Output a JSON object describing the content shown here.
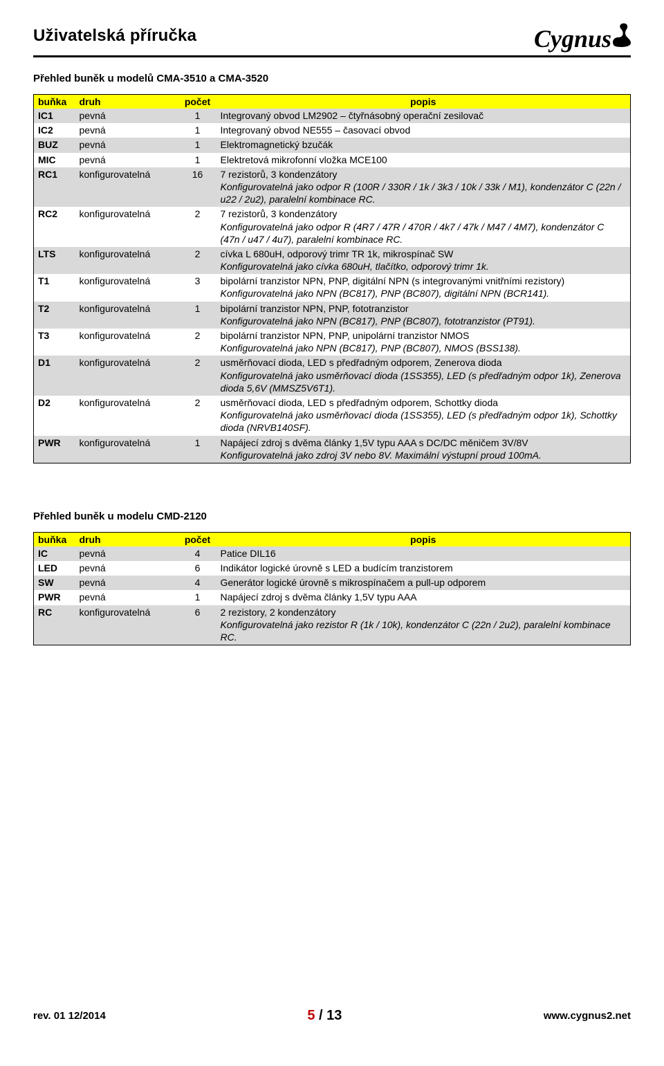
{
  "header": {
    "doc_title": "Uživatelská příručka",
    "brand": "Cygnus"
  },
  "colors": {
    "header_bg": "#ffff00",
    "row_odd": "#d9d9d9",
    "row_even": "#ffffff",
    "border": "#000000",
    "page_red": "#c00000"
  },
  "section1": {
    "title": "Přehled buněk u modelů CMA-3510 a CMA-3520",
    "columns": [
      "buňka",
      "druh",
      "počet",
      "popis"
    ],
    "rows": [
      {
        "code": "IC1",
        "kind": "pevná",
        "count": "1",
        "desc_plain": "Integrovaný obvod LM2902 – čtyřnásobný operační zesilovač",
        "desc_italic": ""
      },
      {
        "code": "IC2",
        "kind": "pevná",
        "count": "1",
        "desc_plain": "Integrovaný obvod NE555 – časovací obvod",
        "desc_italic": ""
      },
      {
        "code": "BUZ",
        "kind": "pevná",
        "count": "1",
        "desc_plain": "Elektromagnetický bzučák",
        "desc_italic": ""
      },
      {
        "code": "MIC",
        "kind": "pevná",
        "count": "1",
        "desc_plain": "Elektretová mikrofonní vložka MCE100",
        "desc_italic": ""
      },
      {
        "code": "RC1",
        "kind": "konfigurovatelná",
        "count": "16",
        "desc_plain": "7 rezistorů, 3 kondenzátory",
        "desc_italic": "Konfigurovatelná jako odpor R (100R / 330R / 1k / 3k3 / 10k / 33k / M1), kondenzátor C (22n / u22 / 2u2), paralelní kombinace RC."
      },
      {
        "code": "RC2",
        "kind": "konfigurovatelná",
        "count": "2",
        "desc_plain": "7 rezistorů, 3 kondenzátory",
        "desc_italic": "Konfigurovatelná jako odpor R (4R7 / 47R / 470R / 4k7 / 47k / M47 / 4M7), kondenzátor C (47n / u47 / 4u7), paralelní kombinace RC."
      },
      {
        "code": "LTS",
        "kind": "konfigurovatelná",
        "count": "2",
        "desc_plain": "cívka L 680uH, odporový trimr TR 1k, mikrospínač SW",
        "desc_italic": "Konfigurovatelná jako cívka 680uH, tlačítko, odporový trimr 1k."
      },
      {
        "code": "T1",
        "kind": "konfigurovatelná",
        "count": "3",
        "desc_plain": "bipolární tranzistor NPN, PNP, digitální NPN (s integrovanými vnitřními rezistory)",
        "desc_italic": "Konfigurovatelná jako NPN (BC817), PNP (BC807), digitální NPN (BCR141)."
      },
      {
        "code": "T2",
        "kind": "konfigurovatelná",
        "count": "1",
        "desc_plain": "bipolární tranzistor NPN, PNP, fototranzistor",
        "desc_italic": "Konfigurovatelná jako NPN (BC817), PNP (BC807), fototranzistor (PT91)."
      },
      {
        "code": "T3",
        "kind": "konfigurovatelná",
        "count": "2",
        "desc_plain": "bipolární tranzistor NPN, PNP, unipolární tranzistor NMOS",
        "desc_italic": "Konfigurovatelná jako NPN (BC817), PNP (BC807), NMOS (BSS138)."
      },
      {
        "code": "D1",
        "kind": "konfigurovatelná",
        "count": "2",
        "desc_plain": "usměrňovací dioda, LED s předřadným odporem, Zenerova dioda",
        "desc_italic": "Konfigurovatelná jako usměrňovací dioda (1SS355), LED (s předřadným odpor 1k), Zenerova dioda 5,6V (MMSZ5V6T1)."
      },
      {
        "code": "D2",
        "kind": "konfigurovatelná",
        "count": "2",
        "desc_plain": "usměrňovací dioda, LED s předřadným odporem, Schottky dioda",
        "desc_italic": "Konfigurovatelná jako usměrňovací dioda (1SS355), LED (s předřadným odpor 1k), Schottky dioda (NRVB140SF)."
      },
      {
        "code": "PWR",
        "kind": "konfigurovatelná",
        "count": "1",
        "desc_plain": "Napájecí zdroj s dvěma články 1,5V typu AAA s DC/DC měničem 3V/8V",
        "desc_italic": "Konfigurovatelná jako zdroj 3V nebo 8V. Maximální výstupní proud 100mA."
      }
    ]
  },
  "section2": {
    "title": "Přehled buněk u modelu CMD-2120",
    "columns": [
      "buňka",
      "druh",
      "počet",
      "popis"
    ],
    "rows": [
      {
        "code": "IC",
        "kind": "pevná",
        "count": "4",
        "desc_plain": "Patice DIL16",
        "desc_italic": ""
      },
      {
        "code": "LED",
        "kind": "pevná",
        "count": "6",
        "desc_plain": "Indikátor logické úrovně s LED a budícím tranzistorem",
        "desc_italic": ""
      },
      {
        "code": "SW",
        "kind": "pevná",
        "count": "4",
        "desc_plain": "Generátor logické úrovně s mikrospínačem a pull-up odporem",
        "desc_italic": ""
      },
      {
        "code": "PWR",
        "kind": "pevná",
        "count": "1",
        "desc_plain": "Napájecí zdroj s dvěma články 1,5V typu AAA",
        "desc_italic": ""
      },
      {
        "code": "RC",
        "kind": "konfigurovatelná",
        "count": "6",
        "desc_plain": "2 rezistory, 2 kondenzátory",
        "desc_italic": "Konfigurovatelná jako rezistor R (1k / 10k), kondenzátor C (22n / 2u2), paralelní kombinace RC."
      }
    ]
  },
  "footer": {
    "rev": "rev. 01  12/2014",
    "page_current": "5",
    "page_sep": " / ",
    "page_total": "13",
    "url": "www.cygnus2.net"
  }
}
